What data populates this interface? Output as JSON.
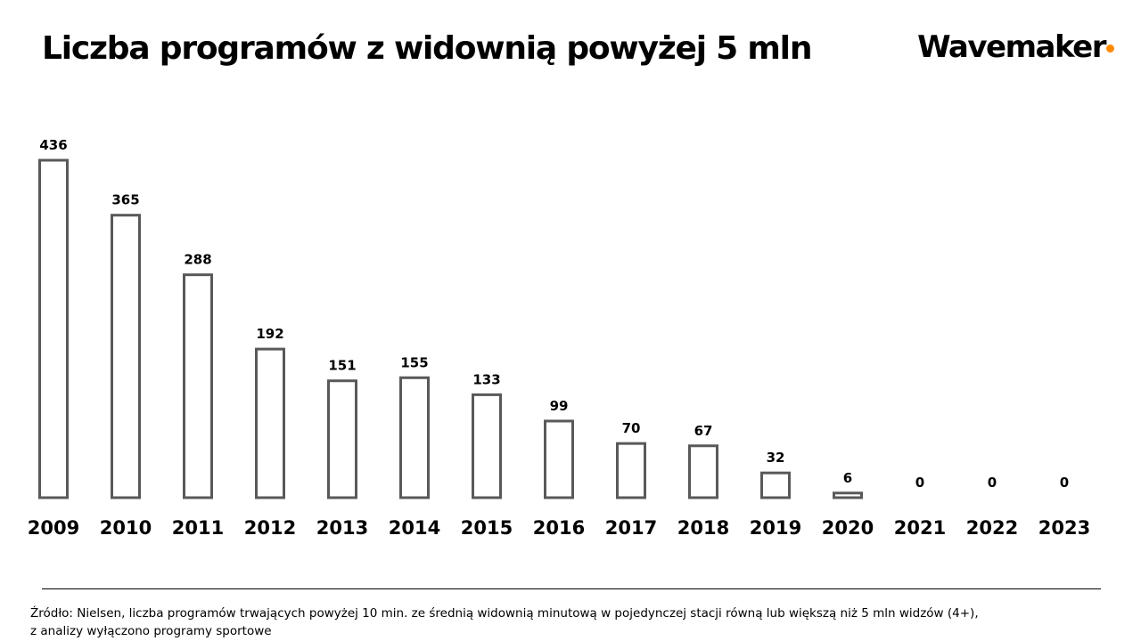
{
  "header": {
    "title": "Liczba programów z widownią powyżej 5 mln",
    "logo_text": "Wavemaker"
  },
  "colors": {
    "bar_stroke": "#595959",
    "bar_fill": "#ffffff",
    "logo_accent": "#ff8a00"
  },
  "chart_data": {
    "type": "bar",
    "title": "Liczba programów z widownią powyżej 5 mln",
    "categories": [
      "2009",
      "2010",
      "2011",
      "2012",
      "2013",
      "2014",
      "2015",
      "2016",
      "2017",
      "2018",
      "2019",
      "2020",
      "2021",
      "2022",
      "2023"
    ],
    "values": [
      436,
      365,
      288,
      192,
      151,
      155,
      133,
      99,
      70,
      67,
      32,
      6,
      0,
      0,
      0
    ],
    "xlabel": "",
    "ylabel": "",
    "ylim": [
      0,
      436
    ],
    "grid": false,
    "legend": "none",
    "data_labels": true
  },
  "footer": {
    "source_line1": "Źródło: Nielsen, liczba programów trwających powyżej 10 min. ze średnią widownią minutową w pojedynczej stacji  równą lub większą niż 5 mln widzów (4+),",
    "source_line2": "z analizy wyłączono programy sportowe"
  }
}
